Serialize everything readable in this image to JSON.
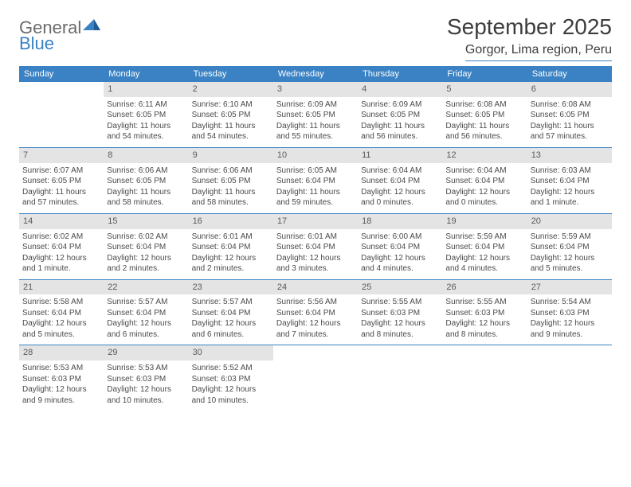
{
  "logo": {
    "text1": "General",
    "text2": "Blue"
  },
  "title": "September 2025",
  "location": "Gorgor, Lima region, Peru",
  "colors": {
    "accent": "#3a82c4",
    "dow_bg": "#3a82c4",
    "dow_text": "#ffffff",
    "daynum_bg": "#e4e4e4",
    "body_text": "#4a4a4a",
    "title_text": "#3d3d3d",
    "logo_gray": "#6b6b6b"
  },
  "typography": {
    "title_size_pt": 21,
    "location_size_pt": 12,
    "dow_size_pt": 8,
    "body_size_pt": 7.5
  },
  "dow": [
    "Sunday",
    "Monday",
    "Tuesday",
    "Wednesday",
    "Thursday",
    "Friday",
    "Saturday"
  ],
  "weeks": [
    [
      null,
      {
        "num": "1",
        "sunrise": "Sunrise: 6:11 AM",
        "sunset": "Sunset: 6:05 PM",
        "daylight": "Daylight: 11 hours and 54 minutes."
      },
      {
        "num": "2",
        "sunrise": "Sunrise: 6:10 AM",
        "sunset": "Sunset: 6:05 PM",
        "daylight": "Daylight: 11 hours and 54 minutes."
      },
      {
        "num": "3",
        "sunrise": "Sunrise: 6:09 AM",
        "sunset": "Sunset: 6:05 PM",
        "daylight": "Daylight: 11 hours and 55 minutes."
      },
      {
        "num": "4",
        "sunrise": "Sunrise: 6:09 AM",
        "sunset": "Sunset: 6:05 PM",
        "daylight": "Daylight: 11 hours and 56 minutes."
      },
      {
        "num": "5",
        "sunrise": "Sunrise: 6:08 AM",
        "sunset": "Sunset: 6:05 PM",
        "daylight": "Daylight: 11 hours and 56 minutes."
      },
      {
        "num": "6",
        "sunrise": "Sunrise: 6:08 AM",
        "sunset": "Sunset: 6:05 PM",
        "daylight": "Daylight: 11 hours and 57 minutes."
      }
    ],
    [
      {
        "num": "7",
        "sunrise": "Sunrise: 6:07 AM",
        "sunset": "Sunset: 6:05 PM",
        "daylight": "Daylight: 11 hours and 57 minutes."
      },
      {
        "num": "8",
        "sunrise": "Sunrise: 6:06 AM",
        "sunset": "Sunset: 6:05 PM",
        "daylight": "Daylight: 11 hours and 58 minutes."
      },
      {
        "num": "9",
        "sunrise": "Sunrise: 6:06 AM",
        "sunset": "Sunset: 6:05 PM",
        "daylight": "Daylight: 11 hours and 58 minutes."
      },
      {
        "num": "10",
        "sunrise": "Sunrise: 6:05 AM",
        "sunset": "Sunset: 6:04 PM",
        "daylight": "Daylight: 11 hours and 59 minutes."
      },
      {
        "num": "11",
        "sunrise": "Sunrise: 6:04 AM",
        "sunset": "Sunset: 6:04 PM",
        "daylight": "Daylight: 12 hours and 0 minutes."
      },
      {
        "num": "12",
        "sunrise": "Sunrise: 6:04 AM",
        "sunset": "Sunset: 6:04 PM",
        "daylight": "Daylight: 12 hours and 0 minutes."
      },
      {
        "num": "13",
        "sunrise": "Sunrise: 6:03 AM",
        "sunset": "Sunset: 6:04 PM",
        "daylight": "Daylight: 12 hours and 1 minute."
      }
    ],
    [
      {
        "num": "14",
        "sunrise": "Sunrise: 6:02 AM",
        "sunset": "Sunset: 6:04 PM",
        "daylight": "Daylight: 12 hours and 1 minute."
      },
      {
        "num": "15",
        "sunrise": "Sunrise: 6:02 AM",
        "sunset": "Sunset: 6:04 PM",
        "daylight": "Daylight: 12 hours and 2 minutes."
      },
      {
        "num": "16",
        "sunrise": "Sunrise: 6:01 AM",
        "sunset": "Sunset: 6:04 PM",
        "daylight": "Daylight: 12 hours and 2 minutes."
      },
      {
        "num": "17",
        "sunrise": "Sunrise: 6:01 AM",
        "sunset": "Sunset: 6:04 PM",
        "daylight": "Daylight: 12 hours and 3 minutes."
      },
      {
        "num": "18",
        "sunrise": "Sunrise: 6:00 AM",
        "sunset": "Sunset: 6:04 PM",
        "daylight": "Daylight: 12 hours and 4 minutes."
      },
      {
        "num": "19",
        "sunrise": "Sunrise: 5:59 AM",
        "sunset": "Sunset: 6:04 PM",
        "daylight": "Daylight: 12 hours and 4 minutes."
      },
      {
        "num": "20",
        "sunrise": "Sunrise: 5:59 AM",
        "sunset": "Sunset: 6:04 PM",
        "daylight": "Daylight: 12 hours and 5 minutes."
      }
    ],
    [
      {
        "num": "21",
        "sunrise": "Sunrise: 5:58 AM",
        "sunset": "Sunset: 6:04 PM",
        "daylight": "Daylight: 12 hours and 5 minutes."
      },
      {
        "num": "22",
        "sunrise": "Sunrise: 5:57 AM",
        "sunset": "Sunset: 6:04 PM",
        "daylight": "Daylight: 12 hours and 6 minutes."
      },
      {
        "num": "23",
        "sunrise": "Sunrise: 5:57 AM",
        "sunset": "Sunset: 6:04 PM",
        "daylight": "Daylight: 12 hours and 6 minutes."
      },
      {
        "num": "24",
        "sunrise": "Sunrise: 5:56 AM",
        "sunset": "Sunset: 6:04 PM",
        "daylight": "Daylight: 12 hours and 7 minutes."
      },
      {
        "num": "25",
        "sunrise": "Sunrise: 5:55 AM",
        "sunset": "Sunset: 6:03 PM",
        "daylight": "Daylight: 12 hours and 8 minutes."
      },
      {
        "num": "26",
        "sunrise": "Sunrise: 5:55 AM",
        "sunset": "Sunset: 6:03 PM",
        "daylight": "Daylight: 12 hours and 8 minutes."
      },
      {
        "num": "27",
        "sunrise": "Sunrise: 5:54 AM",
        "sunset": "Sunset: 6:03 PM",
        "daylight": "Daylight: 12 hours and 9 minutes."
      }
    ],
    [
      {
        "num": "28",
        "sunrise": "Sunrise: 5:53 AM",
        "sunset": "Sunset: 6:03 PM",
        "daylight": "Daylight: 12 hours and 9 minutes."
      },
      {
        "num": "29",
        "sunrise": "Sunrise: 5:53 AM",
        "sunset": "Sunset: 6:03 PM",
        "daylight": "Daylight: 12 hours and 10 minutes."
      },
      {
        "num": "30",
        "sunrise": "Sunrise: 5:52 AM",
        "sunset": "Sunset: 6:03 PM",
        "daylight": "Daylight: 12 hours and 10 minutes."
      },
      null,
      null,
      null,
      null
    ]
  ]
}
